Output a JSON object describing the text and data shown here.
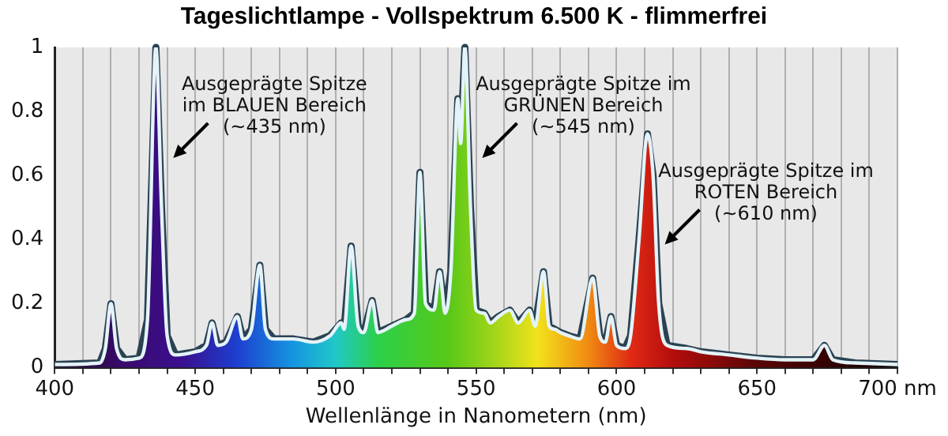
{
  "chart_data": {
    "type": "area",
    "title": "Tageslichtlampe - Vollspektrum 6.500 K - flimmerfrei",
    "xlabel": "Wellenlänge in Nanometern (nm)",
    "x": [
      400,
      416,
      418,
      420,
      422,
      425,
      430,
      433,
      436,
      438,
      440,
      443,
      450,
      454,
      456,
      458,
      461,
      465,
      467,
      470,
      473,
      475,
      478,
      485,
      492,
      498,
      502,
      503,
      505.5,
      508,
      510,
      513,
      515,
      520,
      525,
      528,
      530,
      532,
      535,
      537,
      539,
      541,
      543.5,
      544.5,
      546,
      548,
      550,
      553,
      555,
      558,
      562,
      565,
      569,
      571,
      574,
      576,
      578,
      580,
      583,
      587,
      591.5,
      594,
      596,
      598,
      600,
      603,
      605,
      608,
      611,
      613,
      615,
      618,
      625,
      630,
      640,
      650,
      660,
      670,
      674,
      677,
      685,
      700
    ],
    "series": [
      {
        "color": "#e4f3f8",
        "values": [
          0.01,
          0.015,
          0.06,
          0.2,
          0.06,
          0.025,
          0.03,
          0.15,
          1.0,
          0.5,
          0.1,
          0.04,
          0.05,
          0.07,
          0.14,
          0.07,
          0.08,
          0.16,
          0.09,
          0.12,
          0.32,
          0.12,
          0.09,
          0.09,
          0.08,
          0.1,
          0.14,
          0.12,
          0.38,
          0.13,
          0.11,
          0.21,
          0.11,
          0.13,
          0.15,
          0.17,
          0.61,
          0.2,
          0.18,
          0.3,
          0.17,
          0.3,
          0.84,
          0.7,
          1.0,
          0.5,
          0.18,
          0.17,
          0.14,
          0.16,
          0.18,
          0.14,
          0.18,
          0.13,
          0.3,
          0.13,
          0.12,
          0.11,
          0.1,
          0.09,
          0.28,
          0.1,
          0.08,
          0.16,
          0.07,
          0.06,
          0.1,
          0.4,
          0.73,
          0.6,
          0.2,
          0.07,
          0.06,
          0.05,
          0.04,
          0.03,
          0.025,
          0.025,
          0.07,
          0.025,
          0.015,
          0.01
        ]
      }
    ],
    "xlim": [
      400,
      700
    ],
    "xticks": [
      400,
      {
        "value": 410,
        "label": null
      },
      {
        "value": 420,
        "label": null
      },
      {
        "value": 430,
        "label": null
      },
      {
        "value": 440,
        "label": null
      },
      450,
      {
        "value": 460,
        "label": null
      },
      {
        "value": 470,
        "label": null
      },
      {
        "value": 480,
        "label": null
      },
      {
        "value": 490,
        "label": null
      },
      500,
      {
        "value": 510,
        "label": null
      },
      {
        "value": 520,
        "label": null
      },
      {
        "value": 530,
        "label": null
      },
      {
        "value": 540,
        "label": null
      },
      550,
      {
        "value": 560,
        "label": null
      },
      {
        "value": 570,
        "label": null
      },
      {
        "value": 580,
        "label": null
      },
      {
        "value": 590,
        "label": null
      },
      600,
      {
        "value": 610,
        "label": null
      },
      {
        "value": 620,
        "label": null
      },
      {
        "value": 630,
        "label": null
      },
      {
        "value": 640,
        "label": null
      },
      650,
      {
        "value": 660,
        "label": null
      },
      {
        "value": 670,
        "label": null
      },
      {
        "value": 680,
        "label": null
      },
      {
        "value": 690,
        "label": null
      },
      {
        "value": 700,
        "label": "700 nm"
      }
    ],
    "ylim": [
      0,
      1
    ],
    "yticks": [
      0,
      0.2,
      0.4,
      0.6,
      0.8,
      1
    ],
    "grid": "x",
    "legend": false,
    "marker": "none",
    "line_style": "solid",
    "annotations": [
      {
        "text": "Ausgeprägte Spitze\nim BLAUEN Bereich\n(~435 nm)",
        "x": 436,
        "y": 1.0
      },
      {
        "text": "Ausgeprägte Spitze im\nGRÜNEN Bereich\n(~545 nm)",
        "x": 546,
        "y": 1.0
      },
      {
        "text": "Ausgeprägte Spitze im\nROTEN Bereich\n(~610 nm)",
        "x": 611,
        "y": 0.73
      }
    ]
  }
}
